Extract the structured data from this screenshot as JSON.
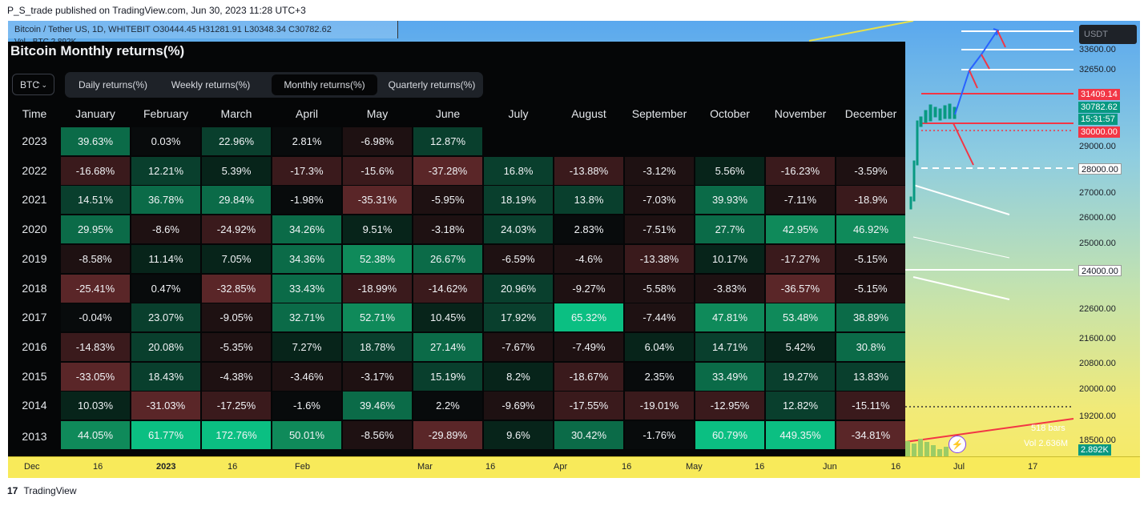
{
  "publisher_line": "P_S_trade published on TradingView.com, Jun 30, 2023 11:28 UTC+3",
  "symbol_bar": {
    "text": "Bitcoin / Tether US, 1D, WHITEBIT  O30444.45  H31281.91  L30348.34  C30782.62",
    "subtext": "Vol · BTC  2.892K"
  },
  "panel": {
    "title": "Bitcoin Monthly returns(%)",
    "symbol": "BTC",
    "tabs": [
      "Daily returns(%)",
      "Weekly returns(%)",
      "Monthly returns(%)",
      "Quarterly returns(%)"
    ],
    "active_tab": "Monthly returns(%)",
    "time_header": "Time",
    "months": [
      "January",
      "February",
      "March",
      "April",
      "May",
      "June",
      "July",
      "August",
      "September",
      "October",
      "November",
      "December"
    ],
    "rows": [
      {
        "year": "2023",
        "values": [
          "39.63%",
          "0.03%",
          "22.96%",
          "2.81%",
          "-6.98%",
          "12.87%",
          "",
          "",
          "",
          "",
          "",
          ""
        ]
      },
      {
        "year": "2022",
        "values": [
          "-16.68%",
          "12.21%",
          "5.39%",
          "-17.3%",
          "-15.6%",
          "-37.28%",
          "16.8%",
          "-13.88%",
          "-3.12%",
          "5.56%",
          "-16.23%",
          "-3.59%"
        ]
      },
      {
        "year": "2021",
        "values": [
          "14.51%",
          "36.78%",
          "29.84%",
          "-1.98%",
          "-35.31%",
          "-5.95%",
          "18.19%",
          "13.8%",
          "-7.03%",
          "39.93%",
          "-7.11%",
          "-18.9%"
        ]
      },
      {
        "year": "2020",
        "values": [
          "29.95%",
          "-8.6%",
          "-24.92%",
          "34.26%",
          "9.51%",
          "-3.18%",
          "24.03%",
          "2.83%",
          "-7.51%",
          "27.7%",
          "42.95%",
          "46.92%"
        ]
      },
      {
        "year": "2019",
        "values": [
          "-8.58%",
          "11.14%",
          "7.05%",
          "34.36%",
          "52.38%",
          "26.67%",
          "-6.59%",
          "-4.6%",
          "-13.38%",
          "10.17%",
          "-17.27%",
          "-5.15%"
        ]
      },
      {
        "year": "2018",
        "values": [
          "-25.41%",
          "0.47%",
          "-32.85%",
          "33.43%",
          "-18.99%",
          "-14.62%",
          "20.96%",
          "-9.27%",
          "-5.58%",
          "-3.83%",
          "-36.57%",
          "-5.15%"
        ]
      },
      {
        "year": "2017",
        "values": [
          "-0.04%",
          "23.07%",
          "-9.05%",
          "32.71%",
          "52.71%",
          "10.45%",
          "17.92%",
          "65.32%",
          "-7.44%",
          "47.81%",
          "53.48%",
          "38.89%"
        ]
      },
      {
        "year": "2016",
        "values": [
          "-14.83%",
          "20.08%",
          "-5.35%",
          "7.27%",
          "18.78%",
          "27.14%",
          "-7.67%",
          "-7.49%",
          "6.04%",
          "14.71%",
          "5.42%",
          "30.8%"
        ]
      },
      {
        "year": "2015",
        "values": [
          "-33.05%",
          "18.43%",
          "-4.38%",
          "-3.46%",
          "-3.17%",
          "15.19%",
          "8.2%",
          "-18.67%",
          "2.35%",
          "33.49%",
          "19.27%",
          "13.83%"
        ]
      },
      {
        "year": "2014",
        "values": [
          "10.03%",
          "-31.03%",
          "-17.25%",
          "-1.6%",
          "39.46%",
          "2.2%",
          "-9.69%",
          "-17.55%",
          "-19.01%",
          "-12.95%",
          "12.82%",
          "-15.11%"
        ]
      },
      {
        "year": "2013",
        "values": [
          "44.05%",
          "61.77%",
          "172.76%",
          "50.01%",
          "-8.56%",
          "-29.89%",
          "9.6%",
          "30.42%",
          "-1.76%",
          "60.79%",
          "449.35%",
          "-34.81%"
        ]
      }
    ]
  },
  "price_axis": {
    "currency_box": "USDT",
    "labels": [
      "33600.00",
      "32650.00",
      "29000.00",
      "27000.00",
      "26000.00",
      "25000.00",
      "22600.00",
      "21600.00",
      "20800.00",
      "20000.00",
      "19200.00",
      "18500.00"
    ],
    "boxed": [
      {
        "text": "31409.14",
        "bg": "#f23645",
        "fg": "#ffffff"
      },
      {
        "text": "30782.62",
        "bg": "#089981",
        "fg": "#ffffff"
      },
      {
        "text": "15:31:57",
        "bg": "#089981",
        "fg": "#ffffff"
      },
      {
        "text": "30000.00",
        "bg": "#f23645",
        "fg": "#ffffff"
      },
      {
        "text": "28000.00",
        "bg": "#ffffff",
        "fg": "#131722"
      },
      {
        "text": "24000.00",
        "bg": "#ffffff",
        "fg": "#131722"
      },
      {
        "text": "2.892K",
        "bg": "#089981",
        "fg": "#ffffff"
      }
    ]
  },
  "bars_info": {
    "bars": "518 bars",
    "vol": "Vol 2.636M"
  },
  "time_axis": [
    "Dec",
    "16",
    "2023",
    "16",
    "Feb",
    "Mar",
    "16",
    "Apr",
    "16",
    "May",
    "16",
    "Jun",
    "16",
    "Jul",
    "17"
  ],
  "footer": {
    "logo": "17",
    "brand": "TradingView"
  },
  "colors": {
    "positive_strong": "#0bbf82",
    "positive": "#0b5e40",
    "negative": "#5a2628",
    "panel_bg": "#050607"
  }
}
